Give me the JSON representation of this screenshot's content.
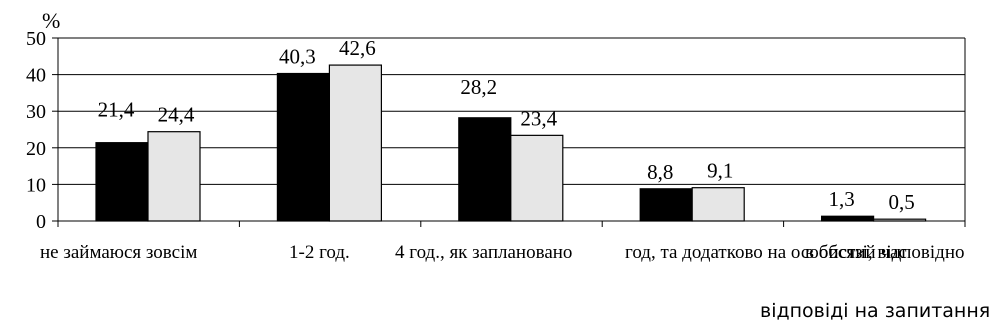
{
  "chart_data": {
    "type": "bar",
    "categories": [
      "не займаюся зовсім",
      "1-2 год.",
      "4 год., як заплановано",
      "год, та додатково на особистий час",
      "в обсязі, відповідно"
    ],
    "series": [
      {
        "values": [
          21.4,
          40.3,
          28.2,
          8.8,
          1.3
        ]
      },
      {
        "values": [
          24.4,
          42.6,
          23.4,
          9.1,
          0.5
        ]
      }
    ],
    "value_labels": [
      [
        "21,4",
        "40,3",
        "28,2",
        "8,8",
        "1,3"
      ],
      [
        "24,4",
        "42,6",
        "23,4",
        "9,1",
        "0,5"
      ]
    ],
    "ylabel": "%",
    "xlabel": "відповіді на запитання",
    "ylim": [
      0,
      50
    ],
    "yticks": [
      0,
      10,
      20,
      30,
      40,
      50
    ],
    "grid": true,
    "legend": "none",
    "colors": [
      "#000000",
      "#e6e6e6"
    ]
  }
}
